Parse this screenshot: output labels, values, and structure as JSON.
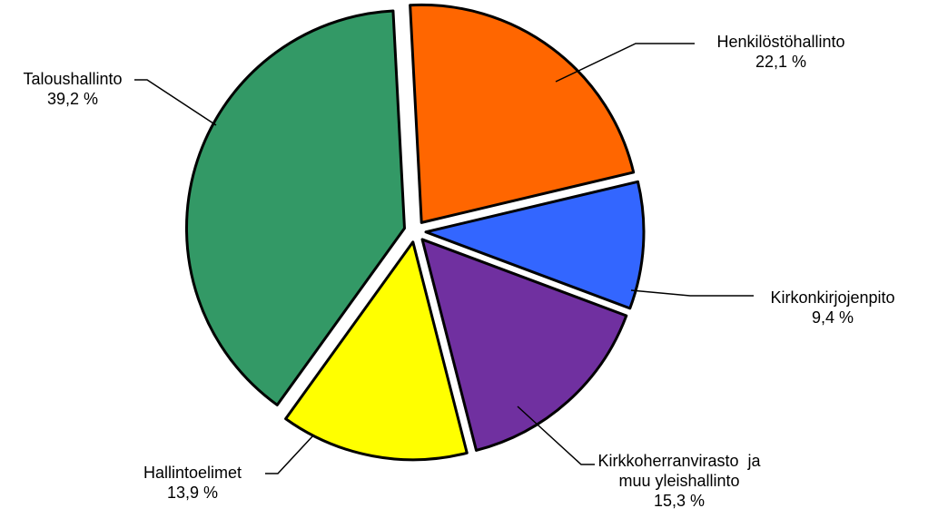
{
  "chart_data": {
    "type": "pie",
    "title": "",
    "legend": "none",
    "slices": [
      {
        "label": "Henkilöstöhallinto",
        "label_lines": [
          "Henkilöstöhallinto"
        ],
        "value": 22.1,
        "value_text": "22,1 %",
        "color": "#FF6600"
      },
      {
        "label": "Kirkonkirjojenpito",
        "label_lines": [
          "Kirkonkirjojenpito"
        ],
        "value": 9.4,
        "value_text": "9,4 %",
        "color": "#3366FF"
      },
      {
        "label": "Kirkkoherranvirasto ja muu yleishallinto",
        "label_lines": [
          "Kirkkoherranvirasto  ja",
          "muu yleishallinto"
        ],
        "value": 15.3,
        "value_text": "15,3 %",
        "color": "#7030A0"
      },
      {
        "label": "Hallintoelimet",
        "label_lines": [
          "Hallintoelimet"
        ],
        "value": 13.9,
        "value_text": "13,9 %",
        "color": "#FFFF00"
      },
      {
        "label": "Taloushallinto",
        "label_lines": [
          "Taloushallinto"
        ],
        "value": 39.2,
        "value_text": "39,2 %",
        "color": "#339966"
      }
    ]
  }
}
